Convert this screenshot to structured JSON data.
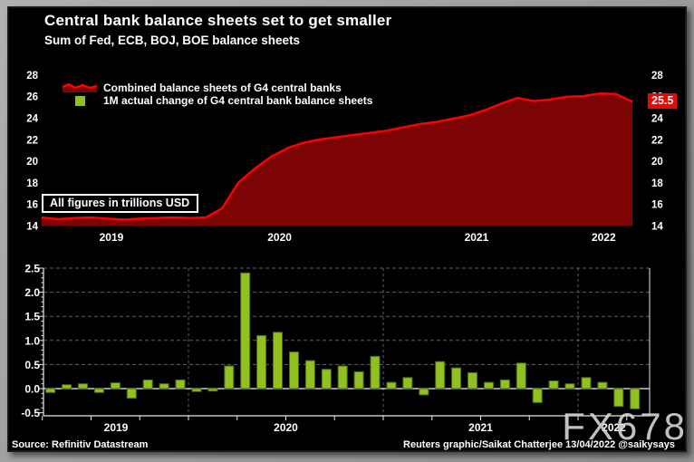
{
  "header": {
    "title": "Central bank balance sheets set to get smaller",
    "subtitle": "Sum of Fed, ECB, BOJ, BOE balance sheets"
  },
  "legend": [
    {
      "label": "Combined balance sheets of G4 central banks",
      "marker": "red-area-line",
      "color": "#ff0000",
      "fill": "#7c0404"
    },
    {
      "label": "1M actual change of G4 central bank balance sheets",
      "marker": "green-square",
      "color": "#90c121"
    }
  ],
  "annotation": "All figures in trillions USD",
  "watermark": "FX678",
  "footer": {
    "source": "Source: Refinitiv Datastream",
    "credit": "Reuters graphic/Saikat Chatterjee 13/04/2022 @saikysays"
  },
  "colors": {
    "background": "#000000",
    "frame": "#9c9c9c",
    "text": "#ffffff",
    "line_red": "#ff0000",
    "area_fill": "#7c0404",
    "bar_green": "#90c121",
    "bar_border": "#4e6c12",
    "badge_red": "#ee0404",
    "grid": "#5f5f5f",
    "zero_line": "#c8c8c8",
    "axis": "#e8e8e8",
    "watermark": "#d6d6d6"
  },
  "chart_data": [
    {
      "type": "area",
      "name": "Combined balance sheets of G4 central banks",
      "unit": "trillions USD",
      "months": [
        "2019-04",
        "2019-05",
        "2019-06",
        "2019-07",
        "2019-08",
        "2019-09",
        "2019-10",
        "2019-11",
        "2019-12",
        "2020-01",
        "2020-02",
        "2020-03",
        "2020-04",
        "2020-05",
        "2020-06",
        "2020-07",
        "2020-08",
        "2020-09",
        "2020-10",
        "2020-11",
        "2020-12",
        "2021-01",
        "2021-02",
        "2021-03",
        "2021-04",
        "2021-05",
        "2021-06",
        "2021-07",
        "2021-08",
        "2021-09",
        "2021-10",
        "2021-11",
        "2021-12",
        "2022-01",
        "2022-02",
        "2022-03",
        "2022-04"
      ],
      "values": [
        14.75,
        14.6,
        14.7,
        14.75,
        14.65,
        14.55,
        14.65,
        14.7,
        14.75,
        14.7,
        14.75,
        15.6,
        18.0,
        19.3,
        20.4,
        21.2,
        21.7,
        22.0,
        22.2,
        22.4,
        22.6,
        22.8,
        23.1,
        23.4,
        23.6,
        23.9,
        24.2,
        24.7,
        25.3,
        25.85,
        25.55,
        25.7,
        25.95,
        26.0,
        26.25,
        26.2,
        25.5
      ],
      "ylim": [
        14,
        28
      ],
      "y_ticks": [
        28,
        26,
        24,
        22,
        20,
        18,
        16,
        14
      ],
      "x_tick_labels": [
        "2019",
        "2020",
        "2021",
        "2022"
      ],
      "last_value_label": "25.5",
      "grid": false,
      "legend_position": "top-left"
    },
    {
      "type": "bar",
      "name": "1M actual change of G4 central bank balance sheets",
      "unit": "trillions USD",
      "months": [
        "2019-04",
        "2019-05",
        "2019-06",
        "2019-07",
        "2019-08",
        "2019-09",
        "2019-10",
        "2019-11",
        "2019-12",
        "2020-01",
        "2020-02",
        "2020-03",
        "2020-04",
        "2020-05",
        "2020-06",
        "2020-07",
        "2020-08",
        "2020-09",
        "2020-10",
        "2020-11",
        "2020-12",
        "2021-01",
        "2021-02",
        "2021-03",
        "2021-04",
        "2021-05",
        "2021-06",
        "2021-07",
        "2021-08",
        "2021-09",
        "2021-10",
        "2021-11",
        "2021-12",
        "2022-01",
        "2022-02",
        "2022-03",
        "2022-04"
      ],
      "values": [
        -0.08,
        0.08,
        0.1,
        -0.08,
        0.12,
        -0.2,
        0.18,
        0.1,
        0.18,
        -0.06,
        -0.05,
        0.47,
        2.4,
        1.1,
        1.17,
        0.76,
        0.58,
        0.4,
        0.47,
        0.35,
        0.67,
        0.13,
        0.23,
        -0.13,
        0.56,
        0.43,
        0.33,
        0.13,
        0.18,
        0.53,
        -0.29,
        0.16,
        0.1,
        0.23,
        0.13,
        -0.37,
        -0.42
      ],
      "ylim": [
        -0.55,
        2.55
      ],
      "y_ticks": [
        2.5,
        2.0,
        1.5,
        1.0,
        0.5,
        0.0,
        -0.5
      ],
      "y_tick_labels": [
        "2.5",
        "2.0",
        "1.5",
        "1.0",
        "0.5",
        "0.0",
        "-0.5"
      ],
      "x_tick_labels": [
        "2019",
        "2020",
        "2021",
        "2022"
      ],
      "grid": true
    }
  ]
}
